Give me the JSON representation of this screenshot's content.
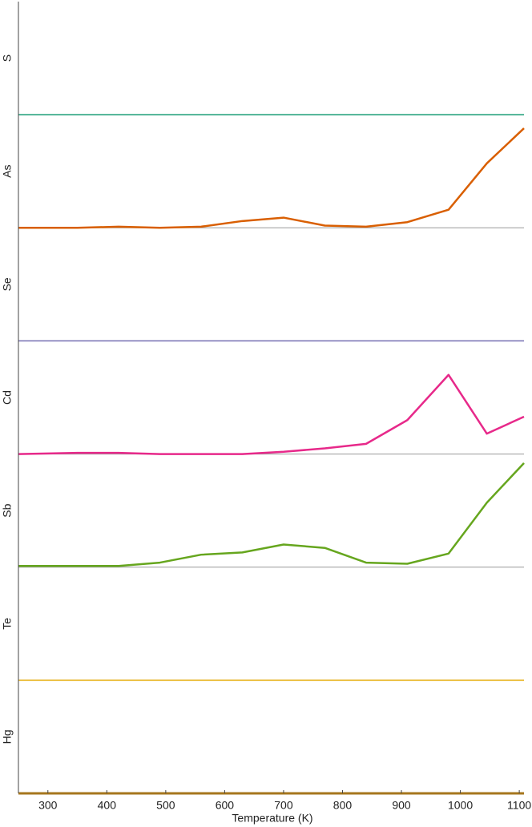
{
  "chart_data": {
    "type": "line",
    "xlabel": "Temperature (K)",
    "xlim": [
      250,
      1108
    ],
    "xticks": [
      300,
      400,
      500,
      600,
      700,
      800,
      900,
      1000,
      1100
    ],
    "ylim": [
      0,
      1
    ],
    "x": [
      250,
      350,
      420,
      490,
      560,
      630,
      700,
      770,
      840,
      910,
      980,
      1045,
      1108
    ],
    "series": [
      {
        "name": "S",
        "color": "#1b9e77",
        "values": [
          0,
          0,
          0,
          0,
          0,
          0,
          0,
          0,
          0,
          0,
          0,
          0,
          0
        ]
      },
      {
        "name": "As",
        "color": "#d95f02",
        "values": [
          0,
          0,
          0.01,
          0,
          0.01,
          0.06,
          0.09,
          0.02,
          0.01,
          0.05,
          0.16,
          0.57,
          0.88
        ]
      },
      {
        "name": "Se",
        "color": "#7570b3",
        "values": [
          0,
          0,
          0,
          0,
          0,
          0,
          0,
          0,
          0,
          0,
          0,
          0,
          0
        ]
      },
      {
        "name": "Cd",
        "color": "#e7298a",
        "values": [
          0,
          0.01,
          0.01,
          0,
          0,
          0,
          0.02,
          0.05,
          0.09,
          0.3,
          0.7,
          0.18,
          0.33
        ]
      },
      {
        "name": "Sb",
        "color": "#66a61e",
        "values": [
          0.01,
          0.01,
          0.01,
          0.04,
          0.11,
          0.13,
          0.2,
          0.17,
          0.04,
          0.03,
          0.12,
          0.57,
          0.92
        ]
      },
      {
        "name": "Te",
        "color": "#e6ab02",
        "values": [
          0,
          0,
          0,
          0,
          0,
          0,
          0,
          0,
          0,
          0,
          0,
          0,
          0
        ]
      },
      {
        "name": "Hg",
        "color": "#a6761d",
        "values": [
          0,
          0,
          0,
          0,
          0,
          0,
          0,
          0,
          0,
          0,
          0,
          0,
          0
        ]
      }
    ]
  }
}
